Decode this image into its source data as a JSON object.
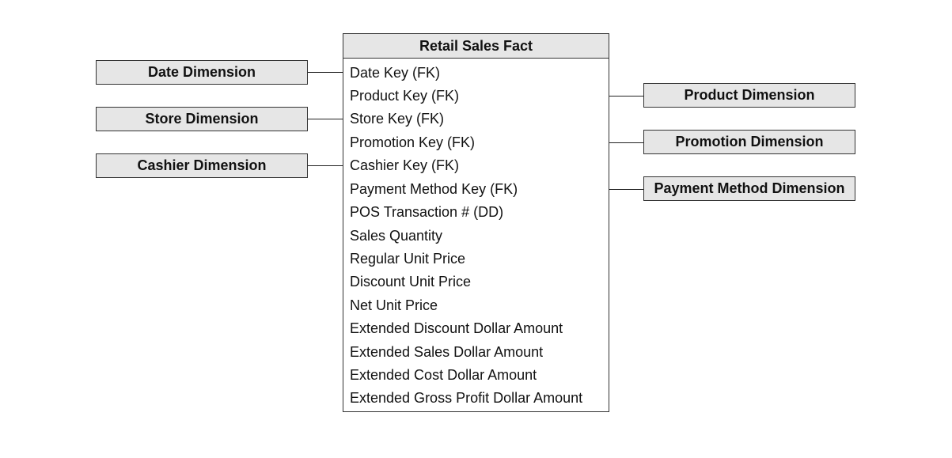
{
  "fact_table": {
    "title": "Retail Sales Fact",
    "attributes": [
      "Date Key (FK)",
      "Product Key (FK)",
      "Store Key (FK)",
      "Promotion Key (FK)",
      "Cashier Key (FK)",
      "Payment Method Key (FK)",
      "POS Transaction # (DD)",
      "Sales Quantity",
      "Regular Unit Price",
      "Discount Unit Price",
      "Net Unit Price",
      "Extended Discount Dollar Amount",
      "Extended Sales Dollar Amount",
      "Extended Cost Dollar Amount",
      "Extended Gross Profit Dollar Amount"
    ]
  },
  "left_dimensions": [
    {
      "label": "Date Dimension",
      "links_to": "Date Key (FK)"
    },
    {
      "label": "Store Dimension",
      "links_to": "Store Key (FK)"
    },
    {
      "label": "Cashier Dimension",
      "links_to": "Cashier Key (FK)"
    }
  ],
  "right_dimensions": [
    {
      "label": "Product Dimension",
      "links_to": "Product Key (FK)"
    },
    {
      "label": "Promotion Dimension",
      "links_to": "Promotion Key (FK)"
    },
    {
      "label": "Payment Method Dimension",
      "links_to": "Payment Method Key (FK)"
    }
  ],
  "colors": {
    "box_fill": "#e6e6e6",
    "border": "#333333",
    "text": "#111111"
  }
}
